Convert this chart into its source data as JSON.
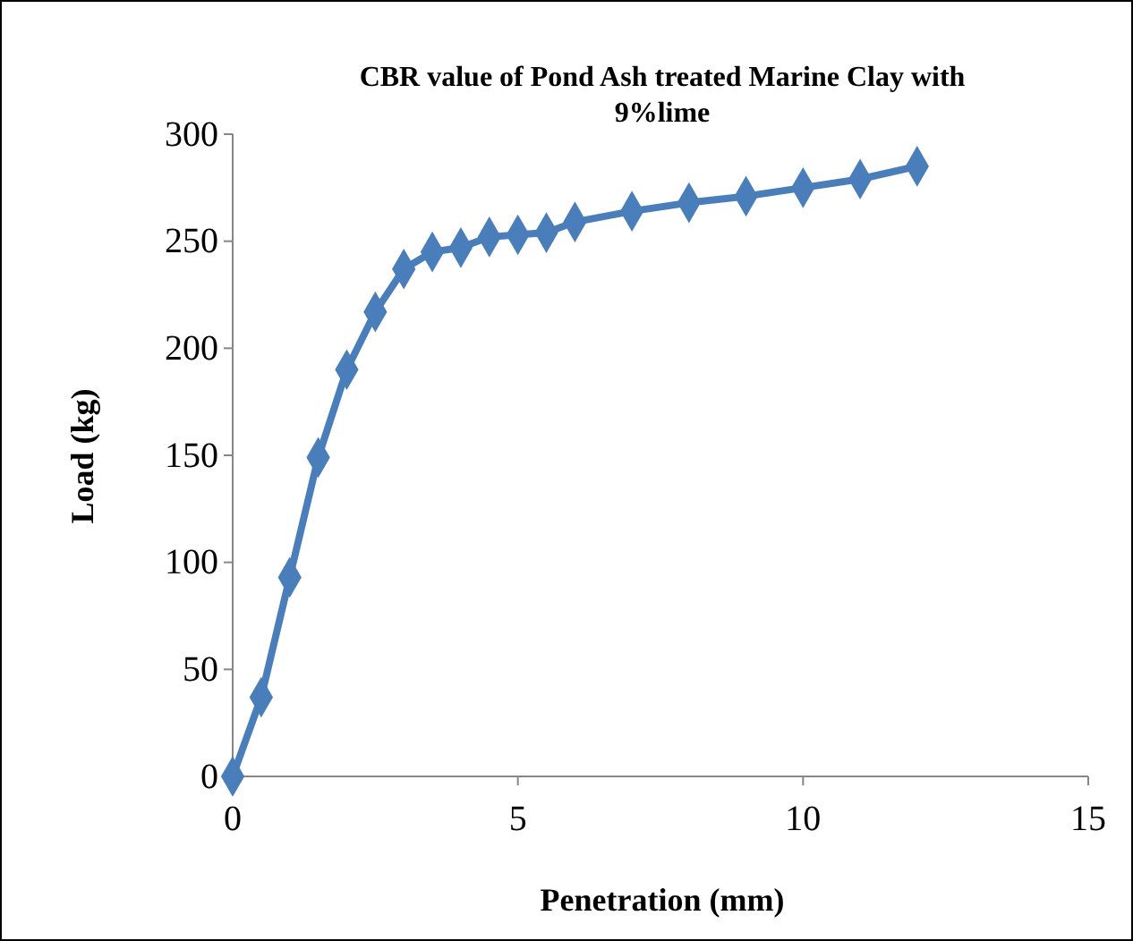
{
  "chart_data": {
    "type": "line",
    "title": "CBR value of Pond Ash treated Marine Clay with 9%lime",
    "xlabel": "Penetration (mm)",
    "ylabel": "Load (kg)",
    "x": [
      0,
      0.5,
      1,
      1.5,
      2,
      2.5,
      3,
      3.5,
      4,
      4.5,
      5,
      5.5,
      6,
      7,
      8,
      9,
      10,
      11,
      12
    ],
    "series": [
      {
        "color": "#4a7ebb",
        "values": [
          0,
          37,
          93,
          149,
          190,
          217,
          237,
          245,
          247,
          252,
          253,
          254,
          259,
          264,
          268,
          271,
          275,
          279,
          285
        ]
      }
    ],
    "xlim": [
      0,
      15
    ],
    "xticks": [
      0,
      5,
      10,
      15
    ],
    "ylim": [
      0,
      300
    ],
    "yticks": [
      0,
      50,
      100,
      150,
      200,
      250,
      300
    ],
    "marker": "diamond",
    "line_style": "solid"
  }
}
